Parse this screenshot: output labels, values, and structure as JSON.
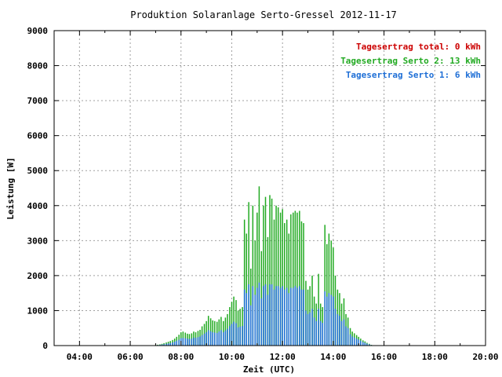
{
  "chart_data": {
    "type": "bar",
    "title": "Produktion Solaranlage Serto-Gressel 2012-11-17",
    "xlabel": "Zeit (UTC)",
    "ylabel": "Leistung [W]",
    "xlim": [
      3.0,
      20.0
    ],
    "ylim": [
      0,
      9000
    ],
    "x_ticks": [
      4,
      6,
      8,
      10,
      12,
      14,
      16,
      18,
      20
    ],
    "x_tick_labels": [
      "04:00",
      "06:00",
      "08:00",
      "10:00",
      "12:00",
      "14:00",
      "16:00",
      "18:00",
      "20:00"
    ],
    "y_ticks": [
      0,
      1000,
      2000,
      3000,
      4000,
      5000,
      6000,
      7000,
      8000,
      9000
    ],
    "y_tick_labels": [
      "0",
      "1000",
      "2000",
      "3000",
      "4000",
      "5000",
      "6000",
      "7000",
      "8000",
      "9000"
    ],
    "grid": true,
    "legend_position": "top-right",
    "legend": [
      {
        "label": "Tagesertrag total: 0 kWh",
        "color": "#cc0000"
      },
      {
        "label": "Tagesertrag Serto 2: 13 kWh",
        "color": "#22aa22"
      },
      {
        "label": "Tagesertrag Serto 1: 6 kWh",
        "color": "#1f6fd6"
      }
    ],
    "x": [
      7.0,
      7.08,
      7.17,
      7.25,
      7.33,
      7.42,
      7.5,
      7.58,
      7.67,
      7.75,
      7.83,
      7.92,
      8.0,
      8.08,
      8.17,
      8.25,
      8.33,
      8.42,
      8.5,
      8.58,
      8.67,
      8.75,
      8.83,
      8.92,
      9.0,
      9.08,
      9.17,
      9.25,
      9.33,
      9.42,
      9.5,
      9.58,
      9.67,
      9.75,
      9.83,
      9.92,
      10.0,
      10.08,
      10.17,
      10.25,
      10.33,
      10.42,
      10.5,
      10.58,
      10.67,
      10.75,
      10.83,
      10.92,
      11.0,
      11.08,
      11.17,
      11.25,
      11.33,
      11.42,
      11.5,
      11.58,
      11.67,
      11.75,
      11.83,
      11.92,
      12.0,
      12.08,
      12.17,
      12.25,
      12.33,
      12.42,
      12.5,
      12.58,
      12.67,
      12.75,
      12.83,
      12.92,
      13.0,
      13.08,
      13.17,
      13.25,
      13.33,
      13.42,
      13.5,
      13.58,
      13.67,
      13.75,
      13.83,
      13.92,
      14.0,
      14.08,
      14.17,
      14.25,
      14.33,
      14.42,
      14.5,
      14.58,
      14.67,
      14.75,
      14.83,
      14.92,
      15.0,
      15.08,
      15.17,
      15.25,
      15.33,
      15.42,
      15.5
    ],
    "series": [
      {
        "name": "Tagesertrag Serto 2: 13 kWh",
        "color": "#22aa22",
        "values": [
          15,
          25,
          35,
          50,
          70,
          90,
          110,
          130,
          160,
          200,
          250,
          310,
          380,
          400,
          370,
          340,
          330,
          350,
          400,
          380,
          420,
          450,
          550,
          620,
          700,
          850,
          780,
          720,
          700,
          680,
          750,
          820,
          700,
          800,
          900,
          1100,
          1250,
          1400,
          1300,
          1000,
          1050,
          1100,
          3600,
          3200,
          4100,
          2200,
          4000,
          3000,
          3800,
          4550,
          2700,
          4000,
          4250,
          3100,
          4300,
          4200,
          3600,
          4000,
          3950,
          3800,
          3900,
          3500,
          3600,
          3200,
          3750,
          3800,
          3850,
          3800,
          3850,
          3550,
          3500,
          1850,
          1600,
          1700,
          2000,
          1400,
          1200,
          2050,
          1200,
          1100,
          3450,
          2900,
          3200,
          3000,
          2800,
          2000,
          1600,
          1500,
          1200,
          1350,
          900,
          800,
          500,
          400,
          350,
          300,
          250,
          200,
          150,
          120,
          80,
          50,
          20
        ]
      },
      {
        "name": "Tagesertrag Serto 1: 6 kWh",
        "color": "#1f6fd6",
        "values": [
          10,
          15,
          20,
          30,
          40,
          50,
          60,
          70,
          90,
          110,
          140,
          170,
          210,
          220,
          210,
          200,
          190,
          200,
          230,
          220,
          240,
          260,
          300,
          340,
          380,
          440,
          410,
          380,
          370,
          360,
          400,
          440,
          380,
          430,
          480,
          560,
          620,
          680,
          640,
          520,
          540,
          560,
          1600,
          1500,
          1750,
          1150,
          1700,
          1450,
          1650,
          1800,
          1350,
          1700,
          1750,
          1450,
          1750,
          1750,
          1600,
          1700,
          1700,
          1650,
          1700,
          1600,
          1650,
          1500,
          1650,
          1650,
          1700,
          1650,
          1700,
          1600,
          1600,
          1000,
          900,
          950,
          1050,
          800,
          700,
          1050,
          700,
          650,
          1550,
          1400,
          1500,
          1450,
          1400,
          1050,
          900,
          850,
          700,
          750,
          550,
          500,
          320,
          260,
          230,
          200,
          170,
          140,
          100,
          80,
          55,
          35,
          15
        ]
      }
    ]
  }
}
